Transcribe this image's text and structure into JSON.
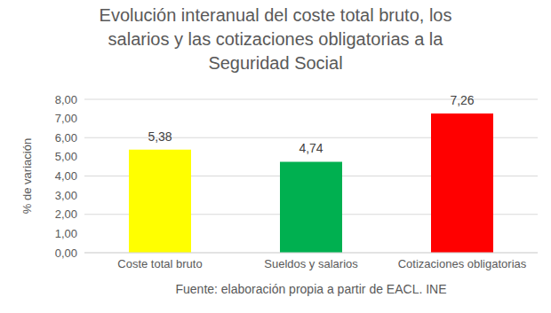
{
  "chart_data": {
    "type": "bar",
    "title": "Evolución interanual del coste total bruto, los salarios y las cotizaciones obligatorias a la Seguridad Social",
    "y_label": "% de variación",
    "annotation": "Fuente: elaboración propia a partir de EACL. INE",
    "categories": [
      "Coste total bruto",
      "Sueldos y salarios",
      "Cotizaciones obligatorias"
    ],
    "values": [
      5.38,
      4.74,
      7.26
    ],
    "value_labels": [
      "5,38",
      "4,74",
      "7,26"
    ],
    "colors": [
      "#FFFF00",
      "#00B050",
      "#FF0000"
    ],
    "ylim": [
      0,
      8
    ],
    "yticks": [
      {
        "value": 0,
        "label": "0,00"
      },
      {
        "value": 1,
        "label": "1,00"
      },
      {
        "value": 2,
        "label": "2,00"
      },
      {
        "value": 3,
        "label": "3,00"
      },
      {
        "value": 4,
        "label": "4,00"
      },
      {
        "value": 5,
        "label": "5,00"
      },
      {
        "value": 6,
        "label": "6,00"
      },
      {
        "value": 7,
        "label": "7,00"
      },
      {
        "value": 8,
        "label": "8,00"
      }
    ],
    "grid": true,
    "data_labels": true
  }
}
